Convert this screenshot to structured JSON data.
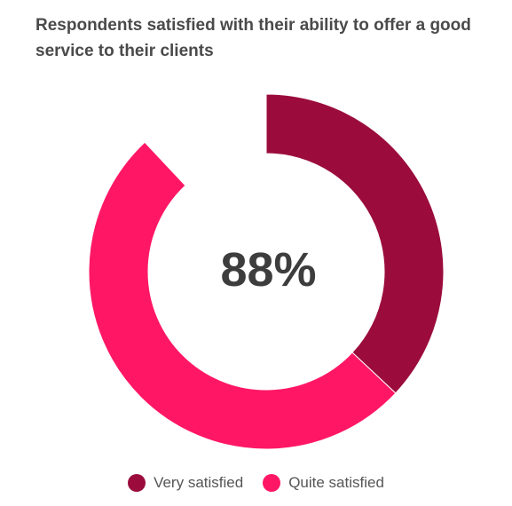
{
  "chart_data": {
    "type": "pie",
    "title": "Respondents satisfied with their ability to offer a good service to their clients",
    "center_label": "88%",
    "series": [
      {
        "name": "Very satisfied",
        "value": 37,
        "color": "#9b0c3d"
      },
      {
        "name": "Quite satisfied",
        "value": 51,
        "color": "#ff1766"
      }
    ],
    "total_shown": 88,
    "legend_placement": "bottom"
  }
}
